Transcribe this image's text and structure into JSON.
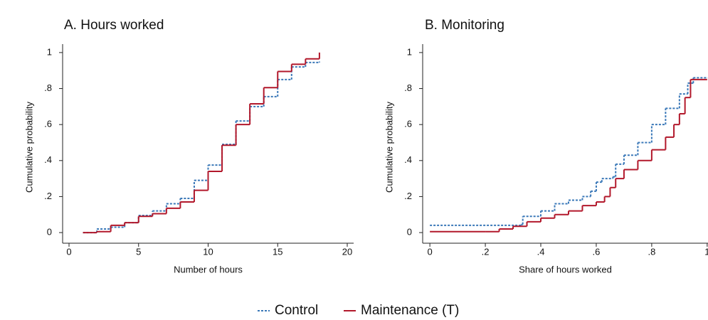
{
  "chart_data": [
    {
      "type": "step",
      "title": "A. Hours worked",
      "xlabel": "Number of hours",
      "ylabel": "Cumulative probability",
      "xlim": [
        -0.46,
        20.46
      ],
      "ylim": [
        -0.059,
        1.047
      ],
      "xticks": [
        0,
        5,
        10,
        15,
        20
      ],
      "yticks": [
        0,
        {
          "value": 0.2,
          "label": ".2"
        },
        {
          "value": 0.4,
          "label": ".4"
        },
        {
          "value": 0.6,
          "label": ".6"
        },
        {
          "value": 0.8,
          "label": ".8"
        },
        1
      ],
      "series": [
        {
          "name": "Control",
          "color": "#3a78b8",
          "dashed": true,
          "x": [
            1,
            2,
            3,
            4,
            5,
            6,
            7,
            8,
            9,
            10,
            11,
            12,
            13,
            14,
            15,
            16,
            17,
            18
          ],
          "values": [
            0,
            0.02,
            0.03,
            0.055,
            0.095,
            0.12,
            0.16,
            0.19,
            0.29,
            0.375,
            0.49,
            0.62,
            0.7,
            0.755,
            0.85,
            0.92,
            0.945,
            0.95
          ]
        },
        {
          "name": "Maintenance (T)",
          "color": "#b2182b",
          "dashed": false,
          "x": [
            1,
            2,
            3,
            4,
            5,
            6,
            7,
            8,
            9,
            10,
            11,
            12,
            13,
            14,
            15,
            16,
            17,
            18
          ],
          "values": [
            0,
            0.005,
            0.04,
            0.055,
            0.09,
            0.105,
            0.135,
            0.17,
            0.235,
            0.34,
            0.485,
            0.6,
            0.715,
            0.805,
            0.895,
            0.935,
            0.965,
            1
          ]
        }
      ]
    },
    {
      "type": "step",
      "title": "B. Monitoring",
      "xlabel": "Share of hours worked",
      "ylabel": "Cumulative probability",
      "xlim": [
        -0.026,
        1.003
      ],
      "ylim": [
        -0.059,
        1.047
      ],
      "xticks": [
        0,
        {
          "value": 0.2,
          "label": ".2"
        },
        {
          "value": 0.4,
          "label": ".4"
        },
        {
          "value": 0.6,
          "label": ".6"
        },
        {
          "value": 0.8,
          "label": ".8"
        },
        1
      ],
      "yticks": [
        0,
        {
          "value": 0.2,
          "label": ".2"
        },
        {
          "value": 0.4,
          "label": ".4"
        },
        {
          "value": 0.6,
          "label": ".6"
        },
        {
          "value": 0.8,
          "label": ".8"
        },
        1
      ],
      "series": [
        {
          "color": "#3a78b8",
          "dashed": true,
          "x": [
            0,
            0.33,
            0.335,
            0.4,
            0.45,
            0.5,
            0.55,
            0.58,
            0.6,
            0.62,
            0.66,
            0.67,
            0.7,
            0.75,
            0.8,
            0.85,
            0.9,
            0.93,
            0.95,
            1.0
          ],
          "values": [
            0.04,
            0.045,
            0.09,
            0.12,
            0.16,
            0.18,
            0.2,
            0.23,
            0.28,
            0.3,
            0.31,
            0.38,
            0.43,
            0.5,
            0.6,
            0.69,
            0.77,
            0.83,
            0.86,
            0.86
          ]
        },
        {
          "color": "#b2182b",
          "dashed": false,
          "x": [
            0,
            0.2,
            0.25,
            0.3,
            0.35,
            0.4,
            0.45,
            0.5,
            0.55,
            0.6,
            0.63,
            0.65,
            0.67,
            0.7,
            0.75,
            0.8,
            0.85,
            0.88,
            0.9,
            0.92,
            0.94,
            1.0
          ],
          "values": [
            0.005,
            0.005,
            0.02,
            0.035,
            0.06,
            0.08,
            0.1,
            0.12,
            0.15,
            0.17,
            0.2,
            0.25,
            0.3,
            0.35,
            0.4,
            0.46,
            0.53,
            0.6,
            0.66,
            0.75,
            0.85,
            0.85
          ]
        }
      ]
    }
  ]
}
